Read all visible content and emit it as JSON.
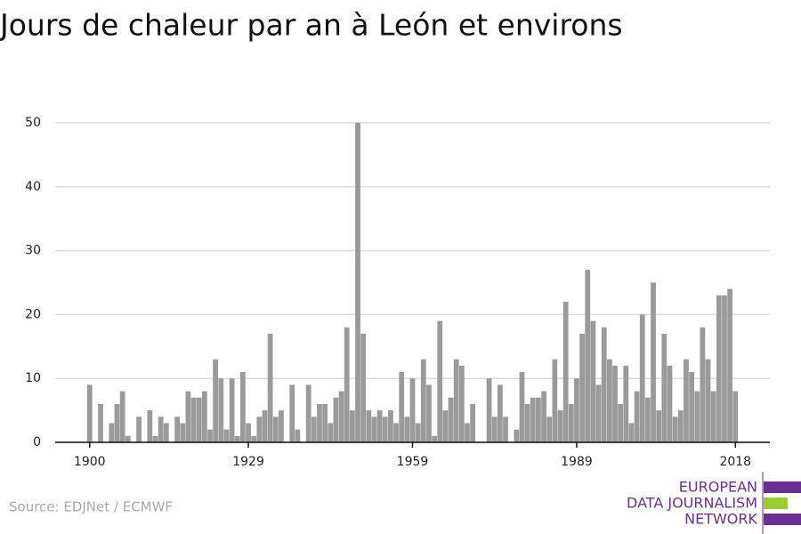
{
  "chart_data": {
    "type": "bar",
    "title": "Jours de chaleur par an à León et environs",
    "source": "Source: EDJNet / ECMWF",
    "logo": [
      "EUROPEAN",
      "DATA JOURNALISM",
      "NETWORK"
    ],
    "color": "#9a9a9a",
    "x": [
      1900,
      1901,
      1902,
      1903,
      1904,
      1905,
      1906,
      1907,
      1908,
      1909,
      1910,
      1911,
      1912,
      1913,
      1914,
      1915,
      1916,
      1917,
      1918,
      1919,
      1920,
      1921,
      1922,
      1923,
      1924,
      1925,
      1926,
      1927,
      1928,
      1929,
      1930,
      1931,
      1932,
      1933,
      1934,
      1935,
      1936,
      1937,
      1938,
      1939,
      1940,
      1941,
      1942,
      1943,
      1944,
      1945,
      1946,
      1947,
      1948,
      1949,
      1950,
      1951,
      1952,
      1953,
      1954,
      1955,
      1956,
      1957,
      1958,
      1959,
      1960,
      1961,
      1962,
      1963,
      1964,
      1965,
      1966,
      1967,
      1968,
      1969,
      1970,
      1971,
      1972,
      1973,
      1974,
      1975,
      1976,
      1977,
      1978,
      1979,
      1980,
      1981,
      1982,
      1983,
      1984,
      1985,
      1986,
      1987,
      1988,
      1989,
      1990,
      1991,
      1992,
      1993,
      1994,
      1995,
      1996,
      1997,
      1998,
      1999,
      2000,
      2001,
      2002,
      2003,
      2004,
      2005,
      2006,
      2007,
      2008,
      2009,
      2010,
      2011,
      2012,
      2013,
      2014,
      2015,
      2016,
      2017,
      2018
    ],
    "values": [
      9,
      0,
      6,
      0,
      3,
      6,
      8,
      1,
      0,
      4,
      0,
      5,
      1,
      4,
      3,
      0,
      4,
      3,
      8,
      7,
      7,
      8,
      2,
      13,
      10,
      2,
      10,
      1,
      11,
      3,
      1,
      4,
      5,
      17,
      4,
      5,
      0,
      9,
      2,
      0,
      9,
      4,
      6,
      6,
      3,
      7,
      8,
      18,
      5,
      50,
      17,
      5,
      4,
      5,
      4,
      5,
      3,
      11,
      4,
      10,
      3,
      13,
      9,
      1,
      19,
      5,
      7,
      13,
      12,
      3,
      6,
      0,
      0,
      10,
      4,
      9,
      4,
      0,
      2,
      11,
      6,
      7,
      7,
      8,
      4,
      13,
      5,
      22,
      6,
      10,
      17,
      27,
      19,
      9,
      18,
      13,
      12,
      6,
      12,
      3,
      8,
      20,
      7,
      25,
      5,
      17,
      12,
      4,
      5,
      13,
      11,
      8,
      18,
      13,
      8,
      23,
      23,
      24,
      8
    ],
    "xlim": [
      1893.7,
      2024.3
    ],
    "xticks": [
      1900,
      1929,
      1959,
      1989,
      2018
    ],
    "ylim": [
      0,
      50
    ],
    "yticks": [
      0,
      10,
      20,
      30,
      40,
      50
    ],
    "grid": true
  }
}
